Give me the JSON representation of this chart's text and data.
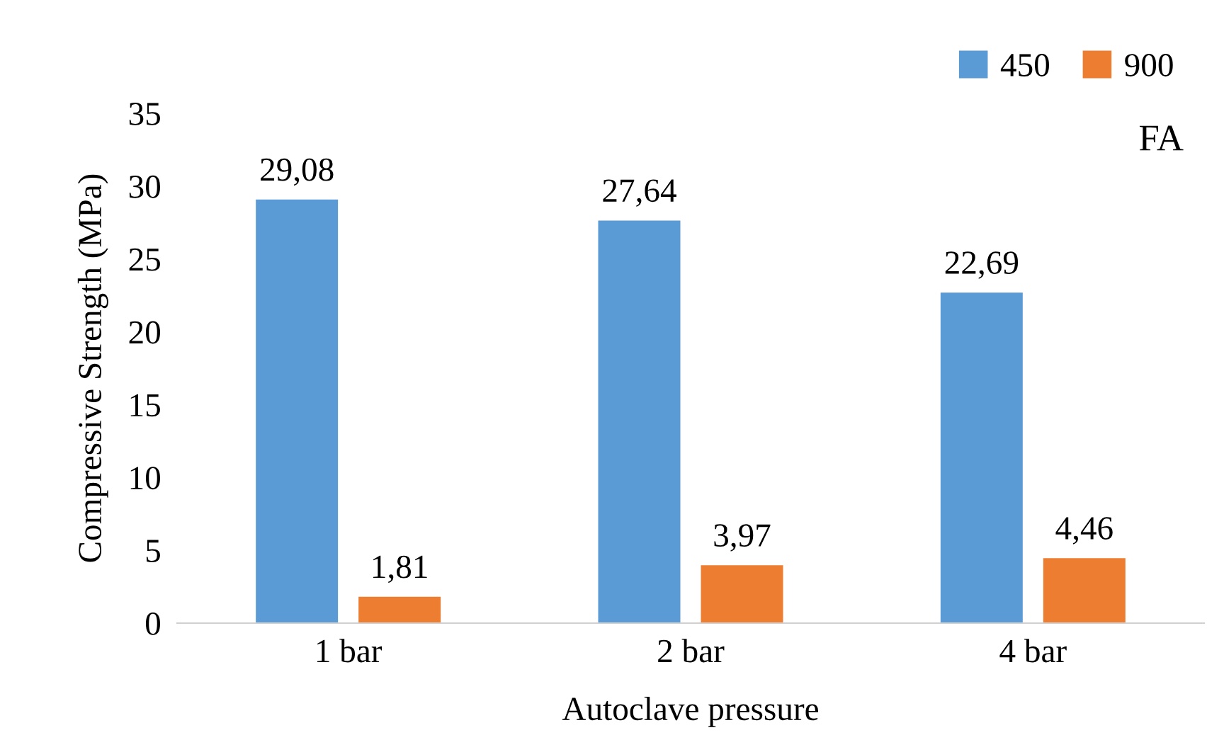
{
  "chart_data": {
    "type": "bar",
    "xlabel": "Autoclave pressure",
    "ylabel": "Compressive Strength (MPa)",
    "categories": [
      "1 bar",
      "2 bar",
      "4 bar"
    ],
    "series": [
      {
        "name": "450",
        "color": "#5b9bd5",
        "values": [
          29.08,
          27.64,
          22.69
        ],
        "value_labels": [
          "29,08",
          "27,64",
          "22,69"
        ]
      },
      {
        "name": "900",
        "color": "#ed7d31",
        "values": [
          1.81,
          3.97,
          4.46
        ],
        "value_labels": [
          "1,81",
          "3,97",
          "4,46"
        ]
      }
    ],
    "ylim": [
      0,
      35
    ],
    "yticks": [
      0,
      5,
      10,
      15,
      20,
      25,
      30,
      35
    ],
    "grid": false,
    "legend": "top right",
    "annotations": [
      "FA"
    ]
  }
}
